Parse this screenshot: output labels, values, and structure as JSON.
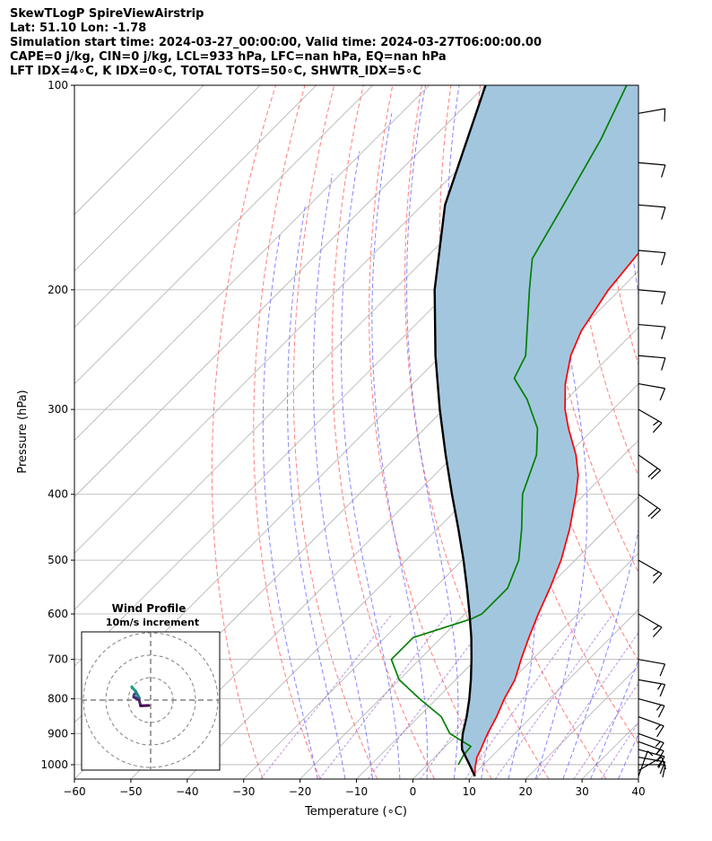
{
  "header": {
    "line1": "SkewTLogP SpireViewAirstrip",
    "line2": "Lat: 51.10   Lon: -1.78",
    "line3": "Simulation start time: 2024-03-27_00:00:00, Valid time: 2024-03-27T06:00:00.00",
    "line4": "CAPE=0 j/kg, CIN=0 j/kg, LCL=933 hPa, LFC=nan hPa, EQ=nan hPa",
    "line5": "LFT IDX=4∘C, K IDX=0∘C, TOTAL TOTS=50∘C, SHWTR_IDX=5∘C"
  },
  "chart_data": {
    "type": "line",
    "subtype": "skew-T log-P diagram",
    "xlabel": "Temperature (∘C)",
    "ylabel": "Pressure (hPa)",
    "xlim": [
      -60,
      40
    ],
    "ylim": [
      1050,
      100
    ],
    "y_scale": "log",
    "x_ticks": [
      "−60",
      "−50",
      "−40",
      "−30",
      "−20",
      "−10",
      "0",
      "10",
      "20",
      "30",
      "40"
    ],
    "y_ticks": [
      "100",
      "200",
      "300",
      "400",
      "500",
      "600",
      "700",
      "800",
      "900",
      "1000"
    ],
    "grid": true,
    "series": [
      {
        "name": "",
        "role": "temperature",
        "color": "#ff0000",
        "points": [
          [
            1040,
            10.5
          ],
          [
            1010,
            9.0
          ],
          [
            975,
            7.5
          ],
          [
            950,
            6.8
          ],
          [
            925,
            6.0
          ],
          [
            900,
            5.2
          ],
          [
            850,
            3.8
          ],
          [
            800,
            2.0
          ],
          [
            750,
            0.5
          ],
          [
            700,
            -2.0
          ],
          [
            650,
            -4.5
          ],
          [
            600,
            -7.0
          ],
          [
            550,
            -9.5
          ],
          [
            500,
            -12.5
          ],
          [
            450,
            -16.5
          ],
          [
            400,
            -21.5
          ],
          [
            375,
            -24.5
          ],
          [
            350,
            -28.5
          ],
          [
            320,
            -34.5
          ],
          [
            300,
            -38.5
          ],
          [
            275,
            -43.0
          ],
          [
            250,
            -47.0
          ],
          [
            230,
            -49.5
          ],
          [
            200,
            -52.0
          ],
          [
            170,
            -53.5
          ],
          [
            150,
            -54.5
          ],
          [
            120,
            -56.0
          ],
          [
            100,
            -57.0
          ]
        ]
      },
      {
        "name": "",
        "role": "dewpoint",
        "color": "#008000",
        "points": [
          [
            1000,
            5.5
          ],
          [
            970,
            4.8
          ],
          [
            940,
            4.5
          ],
          [
            900,
            -1.5
          ],
          [
            850,
            -6.0
          ],
          [
            800,
            -13.0
          ],
          [
            750,
            -20.0
          ],
          [
            700,
            -25.0
          ],
          [
            650,
            -25.0
          ],
          [
            610,
            -18.0
          ],
          [
            600,
            -17.0
          ],
          [
            550,
            -17.0
          ],
          [
            500,
            -20.0
          ],
          [
            450,
            -25.0
          ],
          [
            400,
            -31.0
          ],
          [
            350,
            -35.5
          ],
          [
            320,
            -40.0
          ],
          [
            290,
            -47.0
          ],
          [
            270,
            -53.0
          ],
          [
            250,
            -55.0
          ],
          [
            200,
            -66.0
          ],
          [
            180,
            -71.0
          ],
          [
            150,
            -75.0
          ],
          [
            120,
            -80.0
          ],
          [
            100,
            -85.0
          ]
        ]
      },
      {
        "name": "",
        "role": "parcel",
        "color": "#000000",
        "points": [
          [
            1040,
            10.5
          ],
          [
            1000,
            7.5
          ],
          [
            950,
            3.5
          ],
          [
            933,
            2.5
          ],
          [
            900,
            0.8
          ],
          [
            850,
            -1.5
          ],
          [
            800,
            -4.2
          ],
          [
            750,
            -7.3
          ],
          [
            700,
            -10.8
          ],
          [
            650,
            -14.7
          ],
          [
            600,
            -19.2
          ],
          [
            550,
            -24.2
          ],
          [
            500,
            -29.8
          ],
          [
            450,
            -36.2
          ],
          [
            400,
            -43.5
          ],
          [
            350,
            -51.6
          ],
          [
            300,
            -60.7
          ],
          [
            250,
            -71.0
          ],
          [
            200,
            -82.8
          ],
          [
            150,
            -96.0
          ],
          [
            100,
            -110.0
          ]
        ]
      }
    ],
    "shaded_region": {
      "between": [
        "parcel",
        "temperature"
      ],
      "color": "#a3c6df",
      "description": "CIN area"
    },
    "reference_lines": {
      "isotherms_color": "#b0b0b0",
      "dry_adiabats_color": "#ff6666",
      "moist_adiabats_color": "#6666ff",
      "mixing_ratio_color": "#9955cc"
    },
    "wind_barbs": {
      "color": "#000000",
      "barbs": [
        {
          "pressure": 1040,
          "speed_kt": 5,
          "direction_deg": 20
        },
        {
          "pressure": 1020,
          "speed_kt": 10,
          "direction_deg": 60
        },
        {
          "pressure": 1000,
          "speed_kt": 10,
          "direction_deg": 90
        },
        {
          "pressure": 975,
          "speed_kt": 15,
          "direction_deg": 100
        },
        {
          "pressure": 950,
          "speed_kt": 15,
          "direction_deg": 105
        },
        {
          "pressure": 925,
          "speed_kt": 15,
          "direction_deg": 110
        },
        {
          "pressure": 900,
          "speed_kt": 15,
          "direction_deg": 110
        },
        {
          "pressure": 850,
          "speed_kt": 15,
          "direction_deg": 110
        },
        {
          "pressure": 800,
          "speed_kt": 15,
          "direction_deg": 105
        },
        {
          "pressure": 750,
          "speed_kt": 15,
          "direction_deg": 100
        },
        {
          "pressure": 700,
          "speed_kt": 10,
          "direction_deg": 100
        },
        {
          "pressure": 600,
          "speed_kt": 15,
          "direction_deg": 120
        },
        {
          "pressure": 500,
          "speed_kt": 15,
          "direction_deg": 120
        },
        {
          "pressure": 400,
          "speed_kt": 20,
          "direction_deg": 125
        },
        {
          "pressure": 350,
          "speed_kt": 20,
          "direction_deg": 125
        },
        {
          "pressure": 300,
          "speed_kt": 15,
          "direction_deg": 120
        },
        {
          "pressure": 275,
          "speed_kt": 10,
          "direction_deg": 100
        },
        {
          "pressure": 250,
          "speed_kt": 10,
          "direction_deg": 95
        },
        {
          "pressure": 225,
          "speed_kt": 10,
          "direction_deg": 95
        },
        {
          "pressure": 200,
          "speed_kt": 10,
          "direction_deg": 95
        },
        {
          "pressure": 175,
          "speed_kt": 10,
          "direction_deg": 95
        },
        {
          "pressure": 150,
          "speed_kt": 10,
          "direction_deg": 95
        },
        {
          "pressure": 130,
          "speed_kt": 10,
          "direction_deg": 95
        },
        {
          "pressure": 110,
          "speed_kt": 10,
          "direction_deg": 80
        }
      ]
    },
    "inset": {
      "type": "hodograph",
      "title": "Wind Profile",
      "subtitle": "10m/s increment",
      "rings_ms": [
        10,
        20,
        30
      ]
    }
  }
}
